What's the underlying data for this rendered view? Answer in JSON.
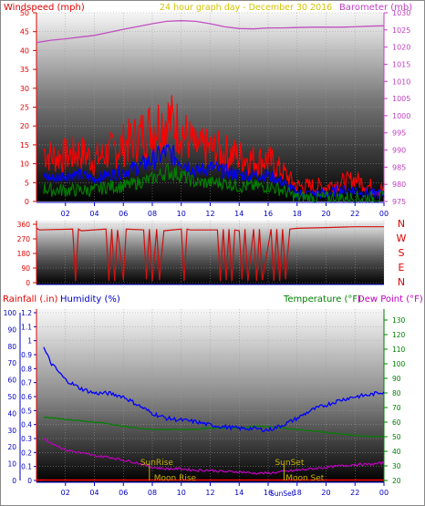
{
  "header": {
    "left_title": "Windspeed (mph)",
    "center_title": "24 hour graph day - December 30 2016",
    "right_title": "Barometer (mb)"
  },
  "middle_labels": [
    "N",
    "W",
    "S",
    "E",
    "N"
  ],
  "bottom_header": {
    "rainfall": "Rainfall (.in)",
    "humidity": "Humidity (%)",
    "temperature": "Temperature (°F)",
    "dewpoint": "Dew Point (°F)"
  },
  "markers": {
    "sunrise": "SunRise",
    "sunset": "SunSet",
    "moonrise": "Moon Rise",
    "moonset": "Moon Set",
    "sunset_small": "SunSet"
  },
  "colors": {
    "wind_gust": "#ff0000",
    "wind_avg": "#0000ff",
    "wind_low": "#008000",
    "barometer": "#c050c0",
    "direction": "#d01010",
    "humidity": "#0000ff",
    "temperature": "#008000",
    "dewpoint": "#c000c0",
    "rainfall": "#ff0000",
    "marker": "#c8b400"
  },
  "chart_data": [
    {
      "type": "line",
      "name": "wind-and-barometer",
      "x_ticks": [
        "02",
        "04",
        "06",
        "08",
        "10",
        "12",
        "14",
        "16",
        "18",
        "20",
        "22",
        "00"
      ],
      "yleft_ticks": [
        "0",
        "5",
        "10",
        "15",
        "20",
        "25",
        "30",
        "35",
        "40",
        "45",
        "50"
      ],
      "yleft_range": [
        0,
        50
      ],
      "yright_ticks": [
        "975",
        "980",
        "985",
        "990",
        "995",
        "1000",
        "1005",
        "1010",
        "1015",
        "1020",
        "1025",
        "1030"
      ],
      "yright_range": [
        975,
        1030
      ],
      "x_hours": [
        0,
        1,
        2,
        3,
        4,
        5,
        6,
        7,
        8,
        9,
        10,
        11,
        12,
        13,
        14,
        15,
        16,
        17,
        18,
        19,
        20,
        21,
        22,
        23,
        24
      ],
      "series": [
        {
          "name": "Windspeed gust",
          "values": [
            15,
            12,
            12,
            13,
            11,
            13,
            15,
            17,
            20,
            22,
            19,
            14,
            14,
            13,
            12,
            11,
            11,
            8,
            4,
            4,
            4,
            5,
            6,
            4,
            3
          ]
        },
        {
          "name": "Windspeed average",
          "values": [
            8,
            6,
            7,
            7,
            6,
            7,
            8,
            9,
            11,
            13,
            11,
            8,
            9,
            8,
            7,
            7,
            7,
            5,
            2,
            2,
            2,
            3,
            3,
            2,
            2
          ]
        },
        {
          "name": "Windspeed low",
          "values": [
            4,
            3,
            3,
            3,
            3,
            4,
            4,
            5,
            6,
            8,
            7,
            5,
            5,
            5,
            4,
            4,
            4,
            3,
            1,
            1,
            1,
            1,
            1,
            1,
            1
          ]
        },
        {
          "name": "Barometer",
          "values": [
            1021.3,
            1022.0,
            1022.4,
            1022.9,
            1023.4,
            1024.3,
            1025.2,
            1026.0,
            1026.8,
            1027.5,
            1027.7,
            1027.5,
            1026.8,
            1025.9,
            1025.4,
            1025.3,
            1025.6,
            1025.6,
            1025.7,
            1025.8,
            1025.8,
            1025.8,
            1025.9,
            1026.1,
            1026.2
          ]
        }
      ]
    },
    {
      "type": "line",
      "name": "wind-direction",
      "y_ticks": [
        "360",
        "270",
        "180",
        "90",
        "0"
      ],
      "y_range": [
        0,
        360
      ],
      "x_hours": [
        0,
        0.2,
        2.5,
        2.7,
        2.9,
        3.1,
        4.8,
        5.0,
        5.2,
        5.4,
        5.6,
        6.0,
        6.2,
        7.4,
        7.6,
        7.8,
        8.0,
        8.3,
        8.5,
        8.8,
        10.0,
        10.2,
        10.4,
        10.6,
        12.5,
        12.7,
        12.9,
        13.1,
        13.3,
        13.5,
        13.7,
        14.0,
        14.2,
        14.4,
        14.6,
        15.0,
        15.2,
        15.4,
        15.6,
        16.2,
        16.4,
        16.6,
        16.8,
        17.0,
        17.2,
        17.5,
        18.0,
        20.0,
        22.0,
        24.0
      ],
      "values": [
        335,
        325,
        330,
        10,
        330,
        320,
        330,
        10,
        330,
        10,
        325,
        15,
        330,
        325,
        20,
        330,
        10,
        330,
        15,
        320,
        330,
        10,
        330,
        325,
        325,
        10,
        330,
        15,
        330,
        10,
        325,
        320,
        20,
        330,
        10,
        330,
        10,
        330,
        15,
        330,
        10,
        330,
        10,
        330,
        20,
        330,
        335,
        340,
        345,
        345
      ]
    },
    {
      "type": "line",
      "name": "rain-humidity-temperature",
      "yleft_ticks": [
        "0",
        "0.1",
        "0.2",
        "0.3",
        "0.4",
        "0.5",
        "0.6",
        "0.7",
        "0.8",
        "0.9",
        "1",
        "1.1",
        "1.2"
      ],
      "yleft_range": [
        0,
        1.2
      ],
      "yleft2_ticks": [
        "0",
        "10",
        "20",
        "30",
        "40",
        "50",
        "60",
        "70",
        "80",
        "90",
        "100"
      ],
      "yleft2_range": [
        0,
        100
      ],
      "yright_ticks": [
        "20",
        "30",
        "40",
        "50",
        "60",
        "70",
        "80",
        "90",
        "100",
        "110",
        "120",
        "130"
      ],
      "yright_range": [
        20,
        135
      ],
      "x_hours": [
        0,
        1,
        2,
        3,
        4,
        5,
        6,
        7,
        8,
        9,
        10,
        11,
        12,
        13,
        14,
        15,
        16,
        17,
        18,
        19,
        20,
        21,
        22,
        23,
        24
      ],
      "series": [
        {
          "name": "Humidity",
          "values": [
            88,
            70,
            60,
            55,
            52,
            52,
            50,
            45,
            40,
            37,
            36,
            35,
            33,
            32,
            31,
            31,
            30,
            33,
            37,
            42,
            45,
            48,
            50,
            51,
            53
          ]
        },
        {
          "name": "Temperature",
          "values": [
            64,
            63,
            62,
            61,
            60,
            59,
            57,
            56,
            55,
            55,
            55,
            55,
            56,
            56,
            56,
            57,
            57,
            56,
            55,
            54,
            53,
            52,
            51,
            50,
            50
          ]
        },
        {
          "name": "Dew Point",
          "values": [
            51,
            46,
            41,
            39,
            37,
            36,
            34,
            32,
            29,
            28,
            28,
            27,
            27,
            26,
            26,
            25,
            25,
            26,
            27,
            28,
            29,
            30,
            31,
            31,
            32
          ]
        },
        {
          "name": "Rainfall",
          "values": [
            0,
            0,
            0,
            0,
            0,
            0,
            0,
            0,
            0,
            0,
            0,
            0,
            0,
            0,
            0,
            0,
            0,
            0,
            0,
            0,
            0,
            0,
            0,
            0,
            0
          ]
        }
      ],
      "markers_hours": {
        "sunrise": 7.8,
        "sunset": 17.1,
        "moonrise": 8.3,
        "moonset": 17.4
      }
    }
  ]
}
